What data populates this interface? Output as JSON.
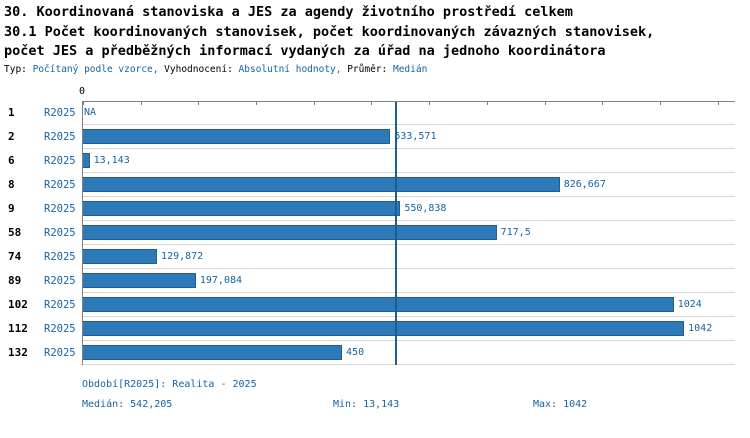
{
  "title": {
    "line1": "30. Koordinovaná stanoviska a JES za agendy životního prostředí celkem",
    "line2": "30.1 Počet koordinovaných stanovisek, počet koordinovaných závazných stanovisek,",
    "line3": "počet JES a předběžných informací vydaných za úřad na jednoho koordinátora"
  },
  "subtitle": {
    "segments": [
      {
        "kind": "label",
        "text": "Typ: "
      },
      {
        "kind": "value",
        "text": "Počítaný podle vzorce, "
      },
      {
        "kind": "label",
        "text": "Vyhodnocení: "
      },
      {
        "kind": "value",
        "text": "Absolutní hodnoty, "
      },
      {
        "kind": "label",
        "text": "Průměr: "
      },
      {
        "kind": "value",
        "text": "Medián"
      }
    ]
  },
  "chart_data": {
    "type": "bar",
    "orientation": "horizontal",
    "title": "30. Koordinovaná stanoviska a JES za agendy životního prostředí celkem — 30.1 Počet koordinovaných stanovisek, počet koordinovaných závazných stanovisek, počet JES a předběžných informací vydaných za úřad na jednoho koordinátora",
    "series_name": "R2025",
    "categories": [
      "1",
      "2",
      "6",
      "8",
      "9",
      "58",
      "74",
      "89",
      "102",
      "112",
      "132"
    ],
    "values": [
      null,
      533.571,
      13.143,
      826.667,
      550.838,
      717.5,
      129.872,
      197.084,
      1024,
      1042,
      450
    ],
    "value_labels": [
      "NA",
      "533,571",
      "13,143",
      "826,667",
      "550,838",
      "717,5",
      "129,872",
      "197,084",
      "1024",
      "1042",
      "450"
    ],
    "axis": {
      "x_min": 0,
      "x_max": 1130,
      "tick_step": 100,
      "zero_label": "0"
    },
    "median_value": 542.205,
    "min_value": 13.143,
    "max_value": 1042,
    "bar_color": "#2c7bb8",
    "accent_text_color": "#1464a5",
    "legend_position": "none",
    "grid": "horizontal"
  },
  "footer": {
    "period": "Období[R2025]: Realita - 2025",
    "median": "Medián: 542,205",
    "min": "Min: 13,143",
    "max": "Max: 1042"
  }
}
